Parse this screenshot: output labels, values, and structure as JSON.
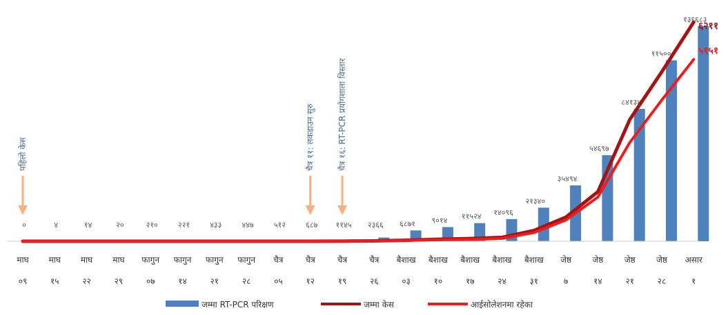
{
  "chart_data": {
    "type": "bar",
    "categories": [
      [
        "माघ",
        "०९"
      ],
      [
        "माघ",
        "१५"
      ],
      [
        "माघ",
        "२२"
      ],
      [
        "माघ",
        "२९"
      ],
      [
        "फागुन",
        "०७"
      ],
      [
        "फागुन",
        "१४"
      ],
      [
        "फागुन",
        "२१"
      ],
      [
        "फागुन",
        "२८"
      ],
      [
        "चैत्र",
        "०५"
      ],
      [
        "चैत्र",
        "१२"
      ],
      [
        "चैत्र",
        "१९"
      ],
      [
        "चैत्र",
        "२६"
      ],
      [
        "बैशाख",
        "०३"
      ],
      [
        "बैशाख",
        "१०"
      ],
      [
        "बैशाख",
        "१७"
      ],
      [
        "बैशाख",
        "२४"
      ],
      [
        "बैशाख",
        "३१"
      ],
      [
        "जेष्ठ",
        "७"
      ],
      [
        "जेष्ठ",
        "१४"
      ],
      [
        "जेष्ठ",
        "२१"
      ],
      [
        "जेष्ठ",
        "२८"
      ],
      [
        "असार",
        "१"
      ]
    ],
    "series": [
      {
        "name": "जम्मा RT-PCR परिक्षण",
        "type": "bar",
        "color": "#4f81bd",
        "values": [
          0,
          4,
          14,
          20,
          210,
          221,
          433,
          447,
          512,
          687,
          1145,
          2366,
          6871,
          9014,
          11524,
          14096,
          21340,
          35494,
          54697,
          84134,
          115000,
          136683
        ],
        "labels": [
          "०",
          "४",
          "१४",
          "२०",
          "२१०",
          "२२१",
          "४३३",
          "४४७",
          "५१२",
          "६८७",
          "११४५",
          "२३६६",
          "६८७१",
          "९०१४",
          "११५२४",
          "१४०९६",
          "२१३४०",
          "३५४९४",
          "५४६९७",
          "८४१३४",
          "११५०००",
          "१३६६८३"
        ]
      },
      {
        "name": "जम्मा केस",
        "type": "line",
        "color": "#a31515",
        "values": [
          0,
          0,
          0,
          0,
          0,
          0,
          0,
          0,
          1,
          1,
          2,
          9,
          30,
          57,
          75,
          110,
          304,
          682,
          1402,
          3450,
          4800,
          6211
        ],
        "end_label": "६२११"
      },
      {
        "name": "आईसोलेशनमा रहेका",
        "type": "line",
        "color": "#ee1c1c",
        "values": [
          0,
          0,
          0,
          0,
          0,
          0,
          0,
          0,
          1,
          1,
          2,
          8,
          25,
          42,
          50,
          80,
          244,
          600,
          1250,
          2800,
          4000,
          5151
        ],
        "end_label": "५१५१"
      }
    ],
    "annotations": [
      {
        "category_index": 0,
        "text": "पहिलो केस"
      },
      {
        "category_index": 9,
        "text": "चैत्र ११: लकडाउन सुरु"
      },
      {
        "category_index": 10,
        "text": "चैत्र १६: RT-PCR प्रयोगशाला विस्तार"
      }
    ],
    "legend": {
      "position": "bottom"
    },
    "grid": false
  }
}
